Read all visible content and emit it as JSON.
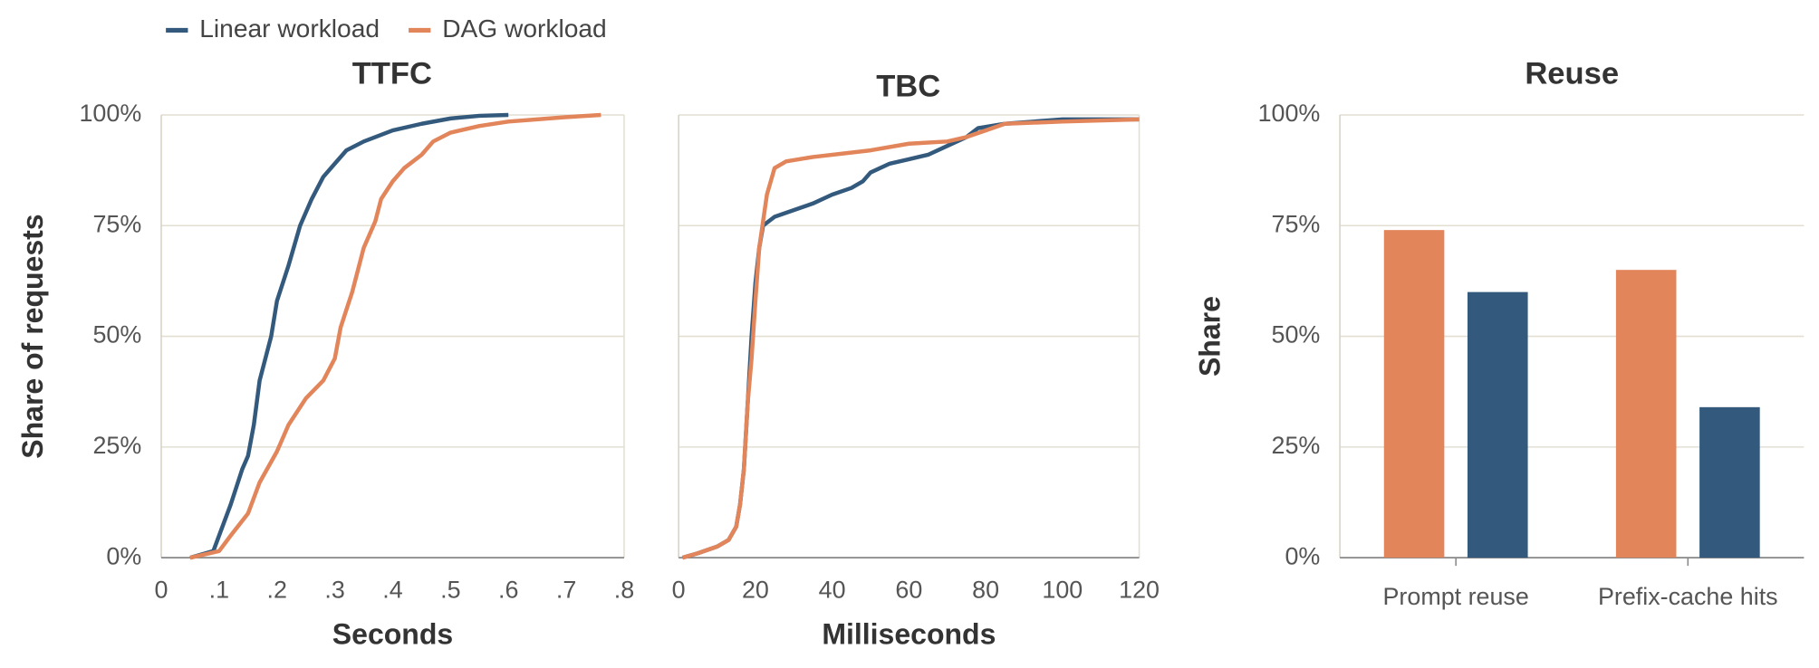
{
  "chart_data": [
    {
      "type": "line",
      "title": "TTFC",
      "xlabel": "Seconds",
      "ylabel": "Share of requests",
      "xlim": [
        0,
        0.8
      ],
      "xticks": [
        0,
        {
          "value": 0.1,
          "label": ".1"
        },
        {
          "value": 0.2,
          "label": ".2"
        },
        {
          "value": 0.3,
          "label": ".3"
        },
        {
          "value": 0.4,
          "label": ".4"
        },
        {
          "value": 0.5,
          "label": ".5"
        },
        {
          "value": 0.6,
          "label": ".6"
        },
        {
          "value": 0.7,
          "label": ".7"
        },
        {
          "value": 0.8,
          "label": ".8"
        }
      ],
      "ylim": [
        0,
        100
      ],
      "yticks": [
        {
          "value": 0,
          "label": "0%"
        },
        {
          "value": 25,
          "label": "25%"
        },
        {
          "value": 50,
          "label": "50%"
        },
        {
          "value": 75,
          "label": "75%"
        },
        {
          "value": 100,
          "label": "100%"
        }
      ],
      "grid": true,
      "show_ytick_labels": true,
      "series": [
        {
          "name": "Linear workload",
          "color": "#335a7d",
          "x": [
            0.05,
            0.09,
            0.1,
            0.12,
            0.14,
            0.15,
            0.16,
            0.17,
            0.19,
            0.2,
            0.22,
            0.24,
            0.26,
            0.28,
            0.3,
            0.32,
            0.35,
            0.4,
            0.45,
            0.5,
            0.55,
            0.6
          ],
          "values": [
            0,
            1.5,
            5,
            12,
            20,
            23,
            30,
            40,
            50,
            58,
            66,
            75,
            81,
            86,
            89,
            92,
            94,
            96.5,
            98,
            99.2,
            99.8,
            100
          ]
        },
        {
          "name": "DAG workload",
          "color": "#e2855a",
          "x": [
            0.05,
            0.1,
            0.12,
            0.15,
            0.17,
            0.2,
            0.22,
            0.25,
            0.28,
            0.3,
            0.31,
            0.33,
            0.35,
            0.37,
            0.38,
            0.4,
            0.42,
            0.45,
            0.47,
            0.5,
            0.55,
            0.6,
            0.7,
            0.76
          ],
          "values": [
            0,
            1.5,
            5,
            10,
            17,
            24,
            30,
            36,
            40,
            45,
            52,
            60,
            70,
            76,
            81,
            85,
            88,
            91,
            94,
            96,
            97.5,
            98.5,
            99.5,
            100
          ]
        }
      ]
    },
    {
      "type": "line",
      "title": "TBC",
      "xlabel": "Milliseconds",
      "xlim": [
        0,
        120
      ],
      "xticks": [
        0,
        20,
        40,
        60,
        80,
        100,
        120
      ],
      "ylim": [
        0,
        100
      ],
      "yticks": [
        0,
        25,
        50,
        75,
        100
      ],
      "grid": true,
      "show_ytick_labels": false,
      "series": [
        {
          "color": "#335a7d",
          "x": [
            1,
            5,
            10,
            13,
            15,
            16,
            17,
            18,
            19,
            20,
            21,
            22,
            25,
            30,
            35,
            40,
            45,
            48,
            50,
            55,
            60,
            65,
            70,
            75,
            78,
            85,
            100,
            120
          ],
          "values": [
            0,
            1,
            2.5,
            4,
            7,
            12,
            20,
            35,
            50,
            62,
            70,
            75,
            77,
            78.5,
            80,
            82,
            83.5,
            85,
            87,
            89,
            90,
            91,
            93,
            95,
            97,
            98,
            99,
            99
          ]
        },
        {
          "color": "#e2855a",
          "x": [
            1,
            5,
            10,
            13,
            15,
            16,
            17,
            18,
            19,
            20,
            21,
            23,
            25,
            28,
            35,
            50,
            60,
            70,
            75,
            80,
            85,
            100,
            120
          ],
          "values": [
            0,
            1,
            2.5,
            4,
            7,
            12,
            20,
            35,
            45,
            58,
            70,
            82,
            88,
            89.5,
            90.5,
            92,
            93.5,
            94,
            95,
            96.5,
            98,
            98.5,
            99
          ]
        }
      ]
    },
    {
      "type": "bar",
      "title": "Reuse",
      "ylabel": "Share",
      "categories": [
        "Prompt reuse",
        "Prefix-cache hits"
      ],
      "ylim": [
        0,
        100
      ],
      "yticks": [
        {
          "value": 0,
          "label": "0%"
        },
        {
          "value": 25,
          "label": "25%"
        },
        {
          "value": 50,
          "label": "50%"
        },
        {
          "value": 75,
          "label": "75%"
        },
        {
          "value": 100,
          "label": "100%"
        }
      ],
      "grid": true,
      "show_ytick_labels": true,
      "series": [
        {
          "color": "#e2855a",
          "values": [
            74,
            65
          ]
        },
        {
          "color": "#335a7d",
          "values": [
            60,
            34
          ]
        }
      ]
    }
  ]
}
